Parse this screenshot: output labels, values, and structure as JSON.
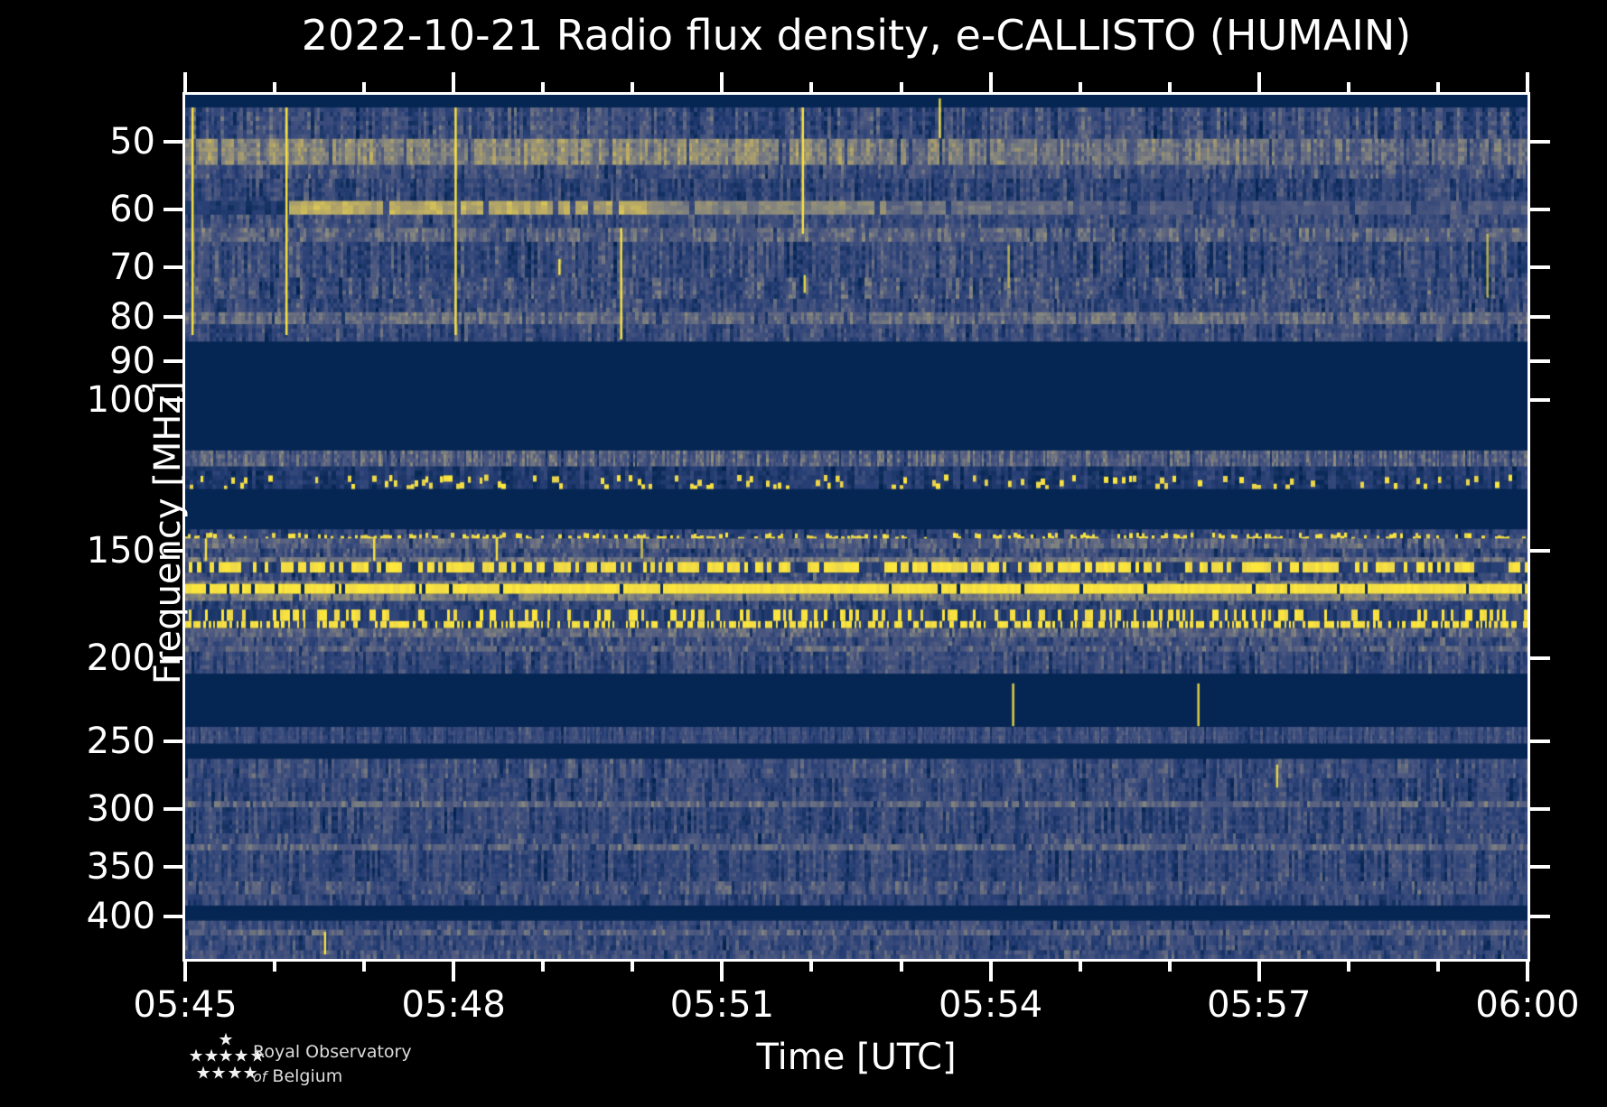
{
  "figure": {
    "bg": "#000000",
    "text_color": "#ffffff",
    "frame_color": "#ffffff"
  },
  "branding": {
    "line1": "Royal Observatory",
    "line2_italic": "of",
    "line2_rest": "Belgium",
    "star_glyph": "★",
    "star_positions": [
      [
        70,
        12
      ],
      [
        37,
        30
      ],
      [
        54,
        30
      ],
      [
        70,
        30
      ],
      [
        87,
        30
      ],
      [
        105,
        30
      ],
      [
        45,
        49
      ],
      [
        62,
        49
      ],
      [
        80,
        49
      ],
      [
        97,
        49
      ]
    ]
  },
  "chart_data": {
    "type": "heatmap",
    "subtype": "radio-spectrogram",
    "title": "2022-10-21 Radio flux density, e-CALLISTO (HUMAIN)",
    "date": "2022-10-21",
    "instrument": "e-CALLISTO",
    "station": "HUMAIN",
    "xlabel": "Time [UTC]",
    "ylabel": "Frequency [MHz]",
    "x_range_minutes": 15,
    "x_major_ticks": [
      {
        "minute": 0,
        "label": "05:45"
      },
      {
        "minute": 3,
        "label": "05:48"
      },
      {
        "minute": 6,
        "label": "05:51"
      },
      {
        "minute": 9,
        "label": "05:54"
      },
      {
        "minute": 12,
        "label": "05:57"
      },
      {
        "minute": 15,
        "label": "06:00"
      }
    ],
    "x_minor_tick_every_minutes": 1,
    "y_scale": "log",
    "y_range_mhz": [
      44.0,
      448.5
    ],
    "y_ticks_mhz": [
      50,
      60,
      70,
      80,
      90,
      100,
      150,
      200,
      250,
      300,
      350,
      400
    ],
    "grid": false,
    "legend": "none",
    "colormap_stops": [
      [
        0.0,
        "#01234f"
      ],
      [
        0.22,
        "#2a4177"
      ],
      [
        0.42,
        "#4f5a80"
      ],
      [
        0.58,
        "#83847f"
      ],
      [
        0.72,
        "#ada06a"
      ],
      [
        0.85,
        "#d8c557"
      ],
      [
        1.0,
        "#ffe83b"
      ]
    ],
    "bands": [
      {
        "f0": 44.0,
        "f1": 45.6,
        "style": "solid"
      },
      {
        "f0": 45.6,
        "f1": 49.6,
        "style": "noise",
        "m": 0.3,
        "v": 0.16,
        "cw": 3
      },
      {
        "f0": 49.6,
        "f1": 53.2,
        "style": "noise",
        "m": 0.58,
        "v": 0.12,
        "cw": 3,
        "xsteps": [
          [
            0.5,
            0.6
          ],
          [
            0.8,
            0.52
          ],
          [
            1,
            0.46
          ]
        ]
      },
      {
        "f0": 53.2,
        "f1": 55.2,
        "style": "noise",
        "m": 0.34,
        "v": 0.13
      },
      {
        "f0": 55.2,
        "f1": 58.6,
        "style": "noise",
        "m": 0.27,
        "v": 0.14
      },
      {
        "f0": 58.6,
        "f1": 60.8,
        "style": "noise",
        "m": 0.55,
        "v": 0.07,
        "cw": 6,
        "xsteps": [
          [
            0.075,
            0.18
          ],
          [
            0.34,
            0.74
          ],
          [
            0.52,
            0.58
          ],
          [
            0.66,
            0.48
          ],
          [
            1,
            0.4
          ]
        ]
      },
      {
        "f0": 60.8,
        "f1": 63.0,
        "style": "noise",
        "m": 0.33,
        "v": 0.13
      },
      {
        "f0": 63.0,
        "f1": 65.4,
        "style": "noise",
        "m": 0.44,
        "v": 0.12
      },
      {
        "f0": 65.4,
        "f1": 72.0,
        "style": "noise",
        "m": 0.3,
        "v": 0.15
      },
      {
        "f0": 72.0,
        "f1": 76.2,
        "style": "noise",
        "m": 0.33,
        "v": 0.16
      },
      {
        "f0": 76.2,
        "f1": 79.0,
        "style": "noise",
        "m": 0.3,
        "v": 0.14
      },
      {
        "f0": 79.0,
        "f1": 81.6,
        "style": "noise",
        "m": 0.48,
        "v": 0.1
      },
      {
        "f0": 81.6,
        "f1": 85.5,
        "style": "noise",
        "m": 0.3,
        "v": 0.14
      },
      {
        "f0": 85.5,
        "f1": 114.5,
        "style": "solid"
      },
      {
        "f0": 114.5,
        "f1": 119.5,
        "style": "noise",
        "m": 0.42,
        "v": 0.14,
        "cw": 2
      },
      {
        "f0": 119.5,
        "f1": 127.0,
        "style": "speckle",
        "m": 0.18,
        "v": 0.1,
        "p": 0.3,
        "cw": 4
      },
      {
        "f0": 127.0,
        "f1": 141.5,
        "style": "solid"
      },
      {
        "f0": 141.5,
        "f1": 145.0,
        "style": "speckle",
        "m": 0.25,
        "v": 0.12,
        "p": 0.45,
        "cw": 3
      },
      {
        "f0": 145.0,
        "f1": 149.0,
        "style": "noise",
        "m": 0.42,
        "v": 0.12
      },
      {
        "f0": 149.0,
        "f1": 152.5,
        "style": "noise",
        "m": 0.3,
        "v": 0.14
      },
      {
        "f0": 152.5,
        "f1": 154.5,
        "style": "noise",
        "m": 0.5,
        "v": 0.08
      },
      {
        "f0": 154.5,
        "f1": 159.0,
        "style": "ydash",
        "p": 0.62,
        "cw": 4
      },
      {
        "f0": 159.0,
        "f1": 162.5,
        "style": "noise",
        "m": 0.32,
        "v": 0.14
      },
      {
        "f0": 162.5,
        "f1": 163.8,
        "style": "noise",
        "m": 0.52,
        "v": 0.07
      },
      {
        "f0": 163.8,
        "f1": 168.3,
        "style": "ysolid",
        "p": 0.08
      },
      {
        "f0": 168.3,
        "f1": 171.5,
        "style": "noise",
        "m": 0.55,
        "v": 0.07
      },
      {
        "f0": 171.5,
        "f1": 175.5,
        "style": "noise",
        "m": 0.3,
        "v": 0.13
      },
      {
        "f0": 175.5,
        "f1": 181.0,
        "style": "ydash",
        "p": 0.3,
        "cw": 3
      },
      {
        "f0": 181.0,
        "f1": 184.5,
        "style": "ydash",
        "p": 0.55,
        "cw": 2
      },
      {
        "f0": 184.5,
        "f1": 189.0,
        "style": "noise",
        "m": 0.44,
        "v": 0.11
      },
      {
        "f0": 189.0,
        "f1": 193.5,
        "style": "noise",
        "m": 0.34,
        "v": 0.13
      },
      {
        "f0": 193.5,
        "f1": 196.5,
        "style": "noise",
        "m": 0.42,
        "v": 0.11
      },
      {
        "f0": 196.5,
        "f1": 208.5,
        "style": "noise",
        "m": 0.3,
        "v": 0.14
      },
      {
        "f0": 208.5,
        "f1": 240.5,
        "style": "solid"
      },
      {
        "f0": 240.5,
        "f1": 251.5,
        "style": "noise",
        "m": 0.3,
        "v": 0.11,
        "cw": 2
      },
      {
        "f0": 251.5,
        "f1": 262.0,
        "style": "solid"
      },
      {
        "f0": 262.0,
        "f1": 276.0,
        "style": "noise",
        "m": 0.33,
        "v": 0.13
      },
      {
        "f0": 276.0,
        "f1": 293.5,
        "style": "noise",
        "m": 0.28,
        "v": 0.13
      },
      {
        "f0": 293.5,
        "f1": 298.5,
        "style": "noise",
        "m": 0.46,
        "v": 0.09
      },
      {
        "f0": 298.5,
        "f1": 320.0,
        "style": "noise",
        "m": 0.28,
        "v": 0.13
      },
      {
        "f0": 320.0,
        "f1": 329.5,
        "style": "noise",
        "m": 0.31,
        "v": 0.13
      },
      {
        "f0": 329.5,
        "f1": 335.0,
        "style": "noise",
        "m": 0.45,
        "v": 0.09
      },
      {
        "f0": 335.0,
        "f1": 364.0,
        "style": "noise",
        "m": 0.28,
        "v": 0.13
      },
      {
        "f0": 364.0,
        "f1": 377.0,
        "style": "noise",
        "m": 0.36,
        "v": 0.12
      },
      {
        "f0": 377.0,
        "f1": 388.5,
        "style": "noise",
        "m": 0.28,
        "v": 0.12
      },
      {
        "f0": 388.5,
        "f1": 404.5,
        "style": "solid"
      },
      {
        "f0": 404.5,
        "f1": 414.5,
        "style": "noise",
        "m": 0.31,
        "v": 0.12
      },
      {
        "f0": 414.5,
        "f1": 421.0,
        "style": "noise",
        "m": 0.42,
        "v": 0.1
      },
      {
        "f0": 421.0,
        "f1": 438.0,
        "style": "noise",
        "m": 0.3,
        "v": 0.13
      },
      {
        "f0": 438.0,
        "f1": 448.5,
        "style": "noise",
        "m": 0.33,
        "v": 0.13
      }
    ],
    "rfi_lines": [
      {
        "minute": 0.08,
        "f0": 45.6,
        "f1": 84.0,
        "alpha": 1.0
      },
      {
        "minute": 1.13,
        "f0": 45.6,
        "f1": 84.0,
        "alpha": 1.0
      },
      {
        "minute": 3.02,
        "f0": 45.6,
        "f1": 84.0,
        "alpha": 1.0
      },
      {
        "minute": 4.18,
        "f0": 68.5,
        "f1": 71.5,
        "alpha": 1.0
      },
      {
        "minute": 4.87,
        "f0": 63.0,
        "f1": 85.0,
        "alpha": 1.0
      },
      {
        "minute": 6.9,
        "f0": 45.6,
        "f1": 64.0,
        "alpha": 1.0
      },
      {
        "minute": 6.92,
        "f0": 71.5,
        "f1": 75.0,
        "alpha": 0.9
      },
      {
        "minute": 8.43,
        "f0": 44.5,
        "f1": 49.5,
        "alpha": 0.9
      },
      {
        "minute": 9.2,
        "f0": 66.0,
        "f1": 74.0,
        "alpha": 0.6
      },
      {
        "minute": 14.55,
        "f0": 64.0,
        "f1": 76.0,
        "alpha": 0.7
      },
      {
        "minute": 0.23,
        "f0": 145.0,
        "f1": 154.0,
        "alpha": 1.0
      },
      {
        "minute": 2.11,
        "f0": 145.0,
        "f1": 154.0,
        "alpha": 1.0
      },
      {
        "minute": 3.48,
        "f0": 145.0,
        "f1": 154.0,
        "alpha": 1.0
      },
      {
        "minute": 5.1,
        "f0": 145.0,
        "f1": 153.0,
        "alpha": 0.8
      },
      {
        "minute": 9.25,
        "f0": 214.0,
        "f1": 240.0,
        "alpha": 0.9
      },
      {
        "minute": 11.32,
        "f0": 214.0,
        "f1": 240.0,
        "alpha": 0.9
      },
      {
        "minute": 12.2,
        "f0": 266.0,
        "f1": 283.0,
        "alpha": 0.9
      },
      {
        "minute": 1.56,
        "f0": 417.0,
        "f1": 443.0,
        "alpha": 1.0
      }
    ]
  }
}
